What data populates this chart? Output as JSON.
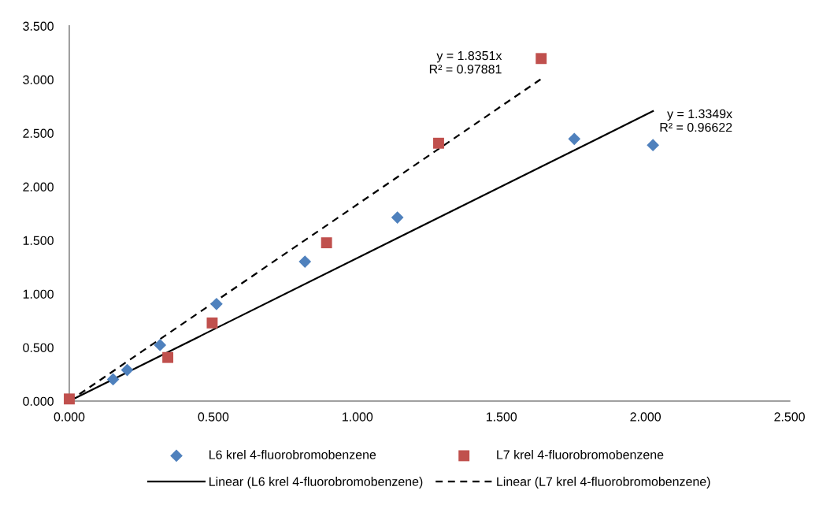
{
  "chart_data": {
    "type": "scatter",
    "xlim": [
      0,
      2.5
    ],
    "ylim": [
      0,
      3.5
    ],
    "xticks": [
      {
        "value": 0,
        "label": "0.000"
      },
      {
        "value": 0.5,
        "label": "0.500"
      },
      {
        "value": 1,
        "label": "1.000"
      },
      {
        "value": 1.5,
        "label": "1.500"
      },
      {
        "value": 2,
        "label": "2.000"
      },
      {
        "value": 2.5,
        "label": "2.500"
      }
    ],
    "yticks": [
      {
        "value": 0,
        "label": "0.000"
      },
      {
        "value": 0.5,
        "label": "0.500"
      },
      {
        "value": 1,
        "label": "1.000"
      },
      {
        "value": 1.5,
        "label": "1.500"
      },
      {
        "value": 2,
        "label": "2.000"
      },
      {
        "value": 2.5,
        "label": "2.500"
      },
      {
        "value": 3,
        "label": "3.000"
      },
      {
        "value": 3.5,
        "label": "3.500"
      }
    ],
    "grid": false,
    "legend": "bottom",
    "series": [
      {
        "name": "L6 krel 4-fluorobromobenzene",
        "marker": "diamond",
        "color": "#4f81bd",
        "x": [
          0.152,
          0.201,
          0.315,
          0.511,
          0.818,
          1.139,
          1.753,
          2.026
        ],
        "values": [
          0.203,
          0.29,
          0.523,
          0.906,
          1.301,
          1.713,
          2.446,
          2.388
        ]
      },
      {
        "name": "L7 krel 4-fluorobromobenzene",
        "marker": "square",
        "color": "#c0504d",
        "x": [
          0,
          0.342,
          0.496,
          0.893,
          1.282,
          1.638
        ],
        "values": [
          0.02,
          0.407,
          0.729,
          1.477,
          2.406,
          3.196
        ]
      },
      {
        "name": "Linear (L6 krel 4-fluorobromobenzene)",
        "type": "line",
        "line_style": "solid",
        "color": "#000000",
        "x": [
          0,
          2.026
        ],
        "values": [
          0,
          2.705
        ]
      },
      {
        "name": "Linear (L7 krel 4-fluorobromobenzene)",
        "type": "line",
        "line_style": "dashed",
        "color": "#000000",
        "x": [
          0,
          1.638
        ],
        "values": [
          0,
          3.006
        ]
      }
    ],
    "annotations": [
      "y = 1.3349x\nR² = 0.96622",
      "y = 1.8351x\nR² = 0.97881"
    ]
  }
}
